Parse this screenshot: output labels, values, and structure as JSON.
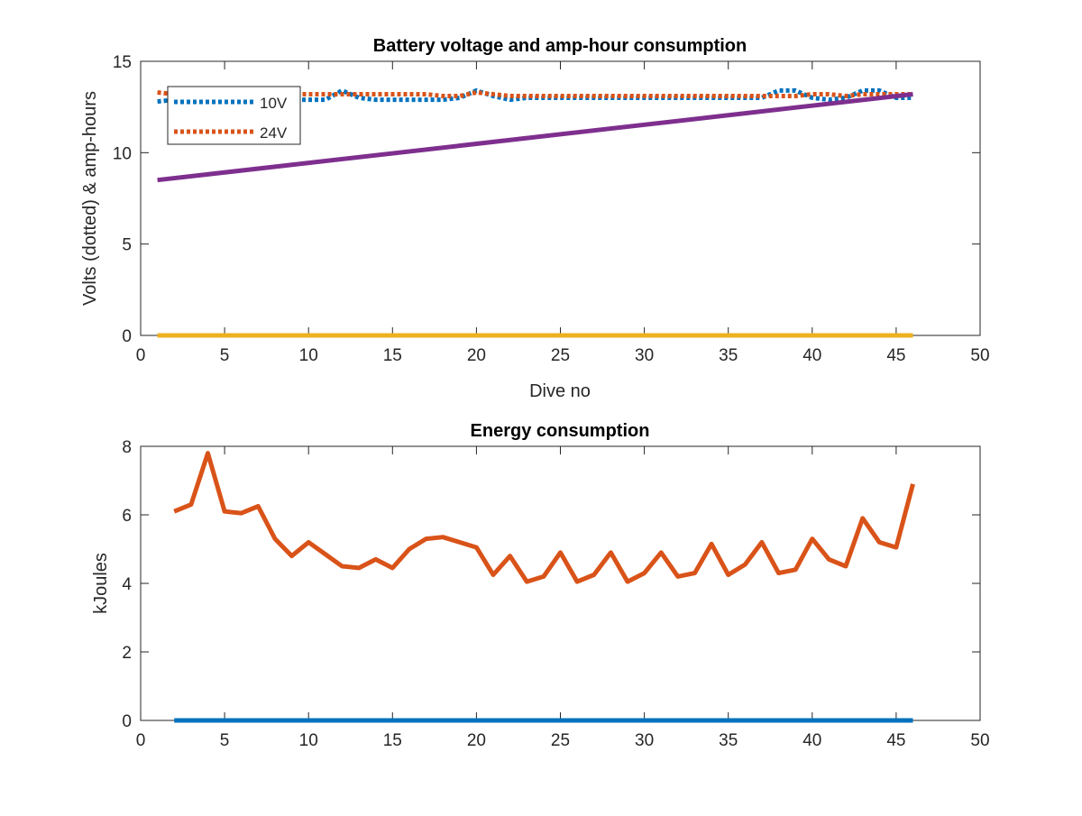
{
  "chart_data": [
    {
      "type": "line",
      "title": "Battery voltage and amp-hour consumption",
      "xlabel": "Dive no",
      "ylabel": "Volts (dotted) & amp-hours",
      "xlim": [
        0,
        50
      ],
      "ylim": [
        0,
        15
      ],
      "xticks": [
        "0",
        "5",
        "10",
        "15",
        "20",
        "25",
        "30",
        "35",
        "40",
        "45",
        "50"
      ],
      "yticks": [
        "0",
        "5",
        "10",
        "15"
      ],
      "grid": false,
      "legend": {
        "placement": "top-left",
        "entries": [
          "10V",
          "24V"
        ]
      },
      "series": [
        {
          "name": "10V",
          "style": "dotted",
          "color": "#0072BD",
          "x": [
            1,
            2,
            3,
            4,
            5,
            6,
            7,
            8,
            9,
            10,
            11,
            12,
            13,
            14,
            15,
            16,
            17,
            18,
            19,
            20,
            21,
            22,
            23,
            24,
            25,
            26,
            27,
            28,
            29,
            30,
            31,
            32,
            33,
            34,
            35,
            36,
            37,
            38,
            39,
            40,
            41,
            42,
            43,
            44,
            45,
            46
          ],
          "values": [
            12.8,
            12.9,
            12.9,
            12.9,
            13.0,
            13.0,
            12.9,
            13.0,
            12.9,
            12.9,
            12.9,
            13.4,
            13.0,
            12.9,
            12.9,
            12.9,
            12.9,
            12.9,
            13.0,
            13.4,
            13.1,
            12.9,
            13.0,
            13.0,
            13.0,
            13.0,
            13.0,
            13.0,
            13.0,
            13.0,
            13.0,
            13.0,
            13.0,
            13.0,
            13.0,
            13.0,
            13.0,
            13.4,
            13.4,
            13.0,
            12.9,
            13.0,
            13.4,
            13.4,
            13.0,
            13.0
          ]
        },
        {
          "name": "24V",
          "style": "dotted",
          "color": "#D95319",
          "x": [
            1,
            2,
            3,
            4,
            5,
            6,
            7,
            8,
            9,
            10,
            11,
            12,
            13,
            14,
            15,
            16,
            17,
            18,
            19,
            20,
            21,
            22,
            23,
            24,
            25,
            26,
            27,
            28,
            29,
            30,
            31,
            32,
            33,
            34,
            35,
            36,
            37,
            38,
            39,
            40,
            41,
            42,
            43,
            44,
            45,
            46
          ],
          "values": [
            13.3,
            13.2,
            13.2,
            13.2,
            13.2,
            13.2,
            13.2,
            13.2,
            13.2,
            13.2,
            13.2,
            13.2,
            13.2,
            13.2,
            13.2,
            13.2,
            13.2,
            13.1,
            13.1,
            13.3,
            13.2,
            13.1,
            13.1,
            13.1,
            13.1,
            13.1,
            13.1,
            13.1,
            13.1,
            13.1,
            13.1,
            13.1,
            13.1,
            13.1,
            13.1,
            13.1,
            13.1,
            13.1,
            13.1,
            13.2,
            13.2,
            13.1,
            13.2,
            13.2,
            13.2,
            13.2
          ]
        },
        {
          "style": "solid",
          "color": "#7E2F8E",
          "x": [
            1,
            46
          ],
          "values": [
            8.5,
            13.2
          ]
        },
        {
          "style": "solid",
          "color": "#EDB120",
          "x": [
            1,
            46
          ],
          "values": [
            0,
            0
          ]
        }
      ]
    },
    {
      "type": "line",
      "title": "Energy consumption",
      "xlabel": "",
      "ylabel": "kJoules",
      "xlim": [
        0,
        50
      ],
      "ylim": [
        0,
        8
      ],
      "xticks": [
        "0",
        "5",
        "10",
        "15",
        "20",
        "25",
        "30",
        "35",
        "40",
        "45",
        "50"
      ],
      "yticks": [
        "0",
        "2",
        "4",
        "6",
        "8"
      ],
      "grid": false,
      "series": [
        {
          "style": "solid",
          "color": "#D95319",
          "x": [
            2,
            3,
            4,
            5,
            6,
            7,
            8,
            9,
            10,
            11,
            12,
            13,
            14,
            15,
            16,
            17,
            18,
            19,
            20,
            21,
            22,
            23,
            24,
            25,
            26,
            27,
            28,
            29,
            30,
            31,
            32,
            33,
            34,
            35,
            36,
            37,
            38,
            39,
            40,
            41,
            42,
            43,
            44,
            45,
            46
          ],
          "values": [
            6.1,
            6.3,
            7.8,
            6.1,
            6.05,
            6.25,
            5.3,
            4.8,
            5.2,
            4.85,
            4.5,
            4.45,
            4.7,
            4.45,
            5.0,
            5.3,
            5.35,
            5.2,
            5.05,
            4.25,
            4.8,
            4.05,
            4.2,
            4.9,
            4.05,
            4.25,
            4.9,
            4.05,
            4.3,
            4.9,
            4.2,
            4.3,
            5.15,
            4.25,
            4.55,
            5.2,
            4.3,
            4.4,
            5.3,
            4.7,
            4.5,
            5.9,
            5.2,
            5.05,
            6.9
          ]
        },
        {
          "style": "solid",
          "color": "#0072BD",
          "x": [
            2,
            46
          ],
          "values": [
            0,
            0
          ]
        }
      ]
    }
  ]
}
